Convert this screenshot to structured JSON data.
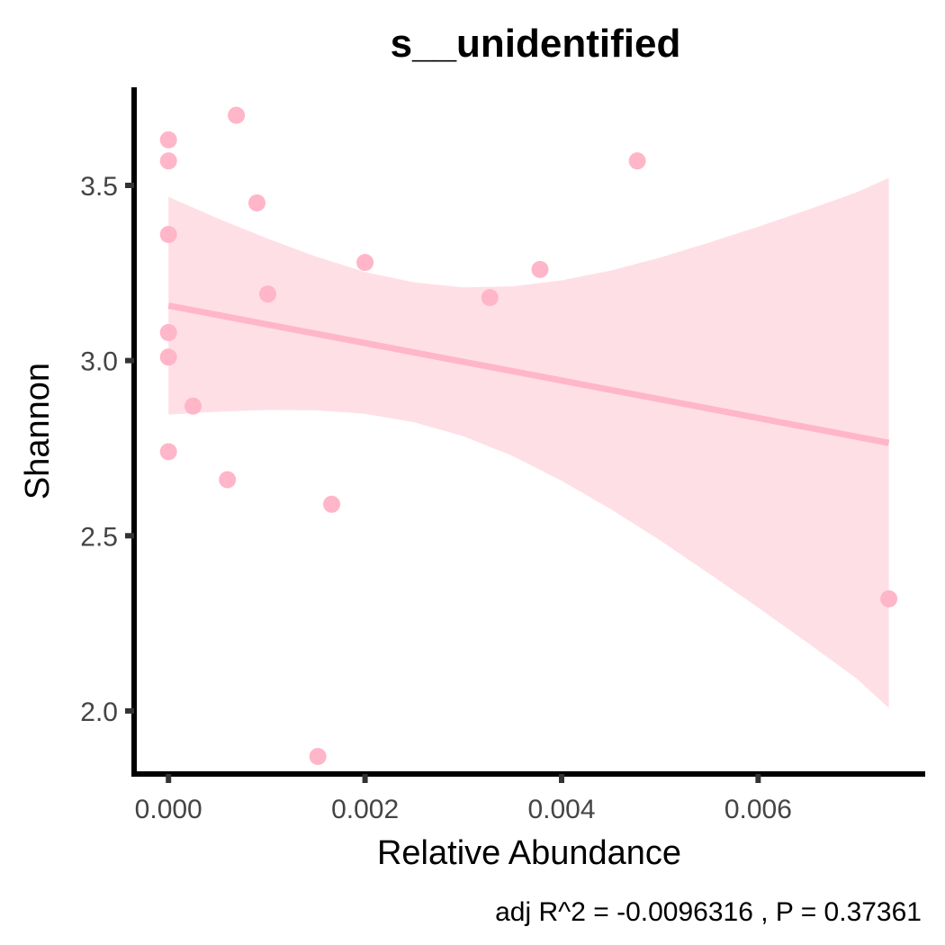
{
  "chart_data": {
    "type": "scatter",
    "title": "s__unidentified",
    "xlabel": "Relative Abundance",
    "ylabel": "Shannon",
    "caption": "adj R^2 =  -0.0096316 , P = 0.37361",
    "xlim": [
      -0.00035,
      0.0077
    ],
    "ylim": [
      1.82,
      3.78
    ],
    "x_ticks": [
      0.0,
      0.002,
      0.004,
      0.006
    ],
    "x_tick_labels": [
      "0.000",
      "0.002",
      "0.004",
      "0.006"
    ],
    "y_ticks": [
      2.0,
      2.5,
      3.0,
      3.5
    ],
    "y_tick_labels": [
      "2.0",
      "2.5",
      "3.0",
      "3.5"
    ],
    "point_color": "#ffb6c8",
    "line_color": "#ffb6c8",
    "band_color": "#ffdfe6",
    "grid": false,
    "legend": "none",
    "points": [
      {
        "x": 0.0,
        "y": 3.63
      },
      {
        "x": 0.0,
        "y": 3.57
      },
      {
        "x": 0.0,
        "y": 3.36
      },
      {
        "x": 0.0,
        "y": 3.08
      },
      {
        "x": 0.0,
        "y": 3.01
      },
      {
        "x": 0.0,
        "y": 2.74
      },
      {
        "x": 0.00025,
        "y": 2.87
      },
      {
        "x": 0.0006,
        "y": 2.66
      },
      {
        "x": 0.00069,
        "y": 3.7
      },
      {
        "x": 0.0009,
        "y": 3.45
      },
      {
        "x": 0.00101,
        "y": 3.19
      },
      {
        "x": 0.00152,
        "y": 1.87
      },
      {
        "x": 0.00166,
        "y": 2.59
      },
      {
        "x": 0.002,
        "y": 3.28
      },
      {
        "x": 0.00327,
        "y": 3.18
      },
      {
        "x": 0.00378,
        "y": 3.26
      },
      {
        "x": 0.00477,
        "y": 3.57
      },
      {
        "x": 0.00733,
        "y": 2.32
      }
    ],
    "fit_line": {
      "x": [
        0.0,
        0.00733
      ],
      "y": [
        3.157,
        2.765
      ]
    },
    "confidence_band": {
      "x": [
        0.0,
        0.0005,
        0.001,
        0.0015,
        0.002,
        0.0025,
        0.003,
        0.0035,
        0.004,
        0.0045,
        0.005,
        0.0055,
        0.006,
        0.0065,
        0.007,
        0.00733
      ],
      "lower": [
        2.846,
        2.854,
        2.859,
        2.858,
        2.848,
        2.824,
        2.784,
        2.728,
        2.657,
        2.576,
        2.487,
        2.392,
        2.295,
        2.195,
        2.093,
        2.008
      ],
      "upper": [
        3.467,
        3.406,
        3.349,
        3.297,
        3.253,
        3.223,
        3.209,
        3.212,
        3.229,
        3.257,
        3.294,
        3.337,
        3.382,
        3.43,
        3.48,
        3.521
      ]
    }
  }
}
